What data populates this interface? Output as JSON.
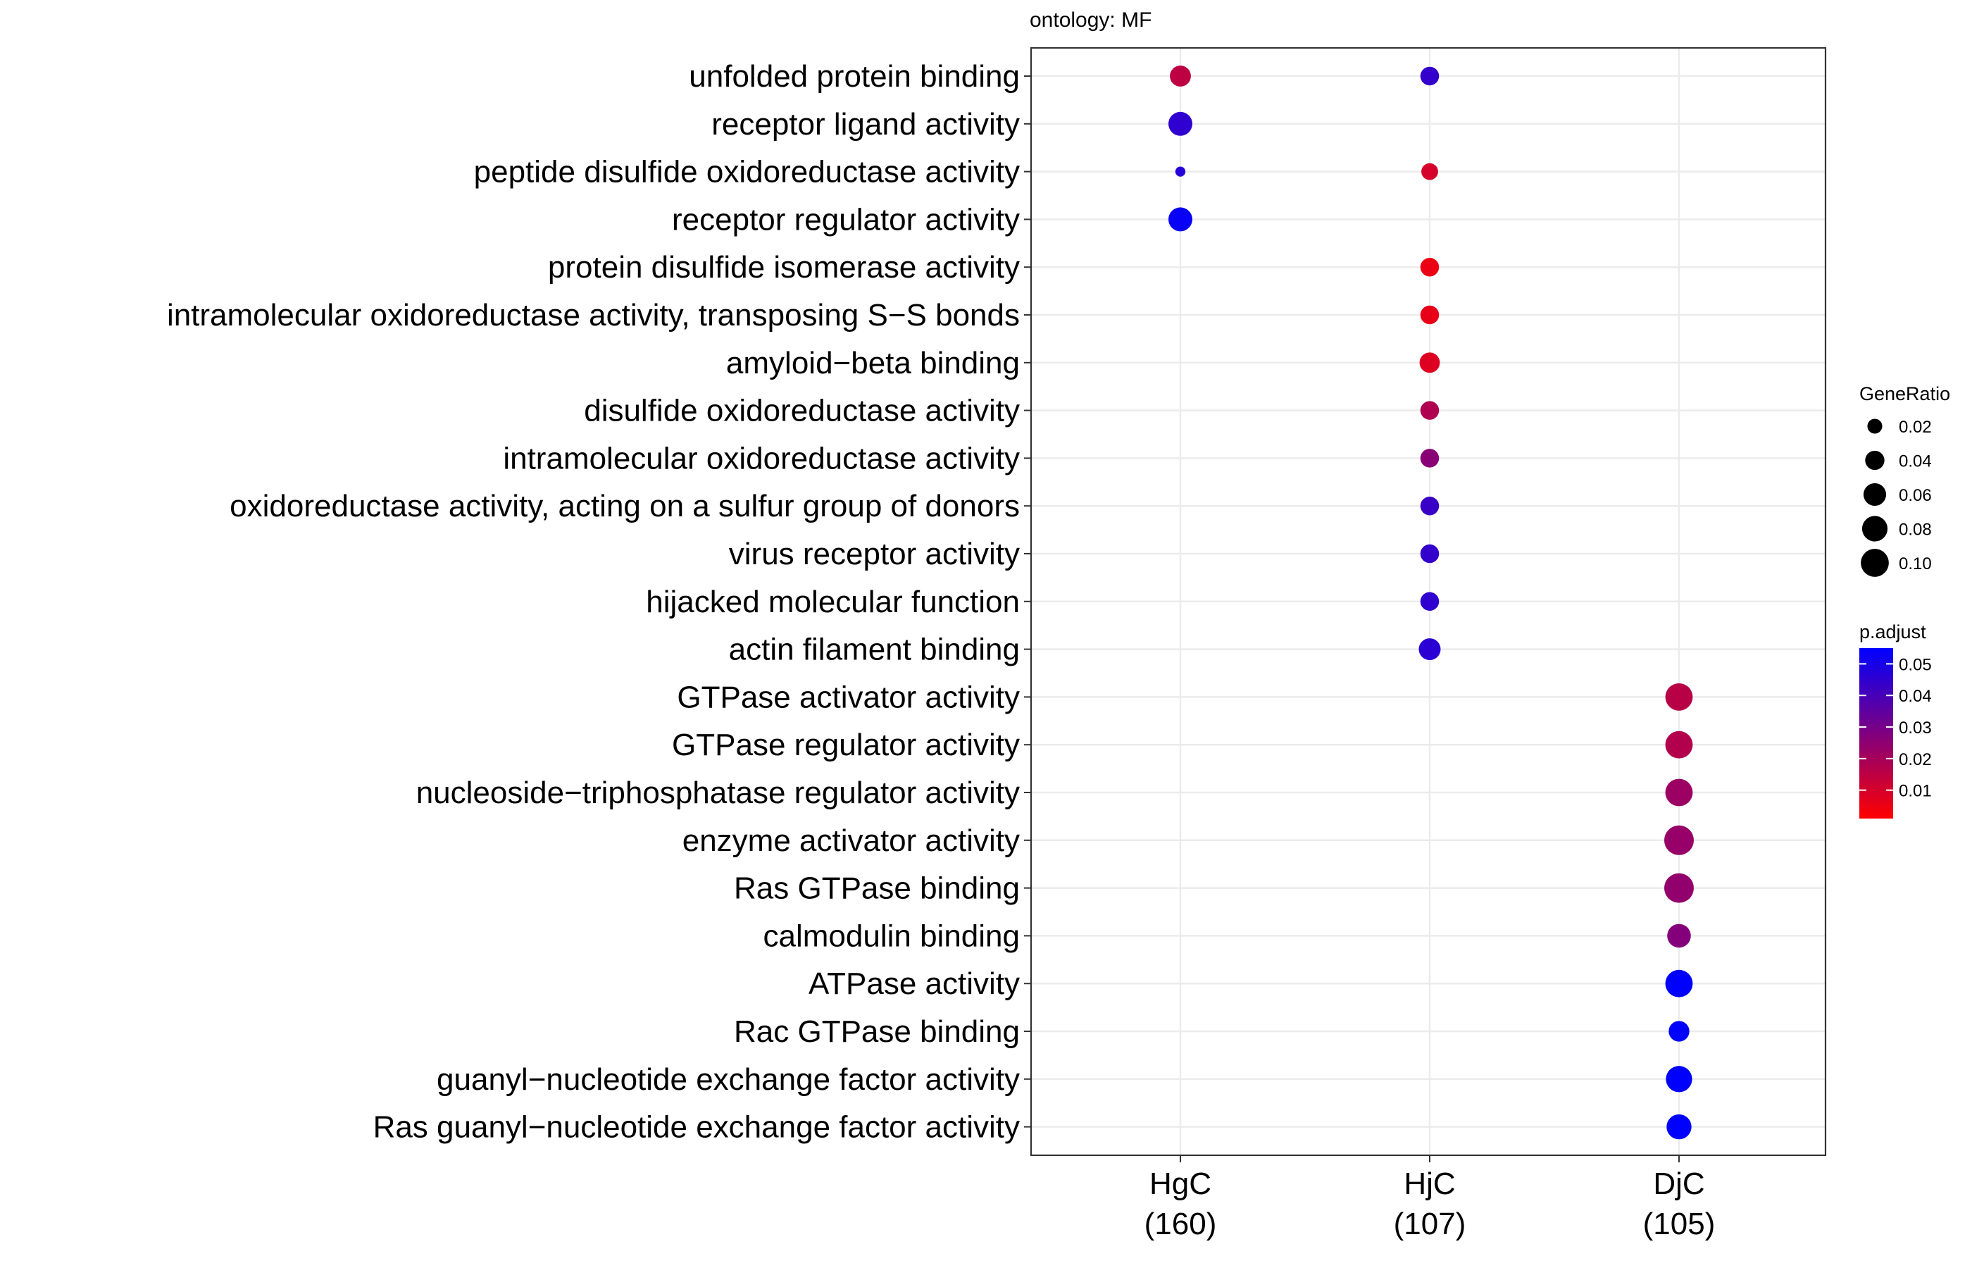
{
  "chart_data": {
    "type": "scatter",
    "subtitle": "ontology: MF",
    "xlabel": "",
    "ylabel": "",
    "grid": true,
    "legend_position": "right",
    "x_categories": [
      {
        "name": "HgC",
        "count": "(160)"
      },
      {
        "name": "HjC",
        "count": "(107)"
      },
      {
        "name": "DjC",
        "count": "(105)"
      }
    ],
    "y_categories": [
      "unfolded protein binding",
      "receptor ligand activity",
      "peptide disulfide oxidoreductase activity",
      "receptor regulator activity",
      "protein disulfide isomerase activity",
      "intramolecular oxidoreductase activity, transposing S−S bonds",
      "amyloid−beta binding",
      "disulfide oxidoreductase activity",
      "intramolecular oxidoreductase activity",
      "oxidoreductase activity, acting on a sulfur group of donors",
      "virus receptor activity",
      "hijacked molecular function",
      "actin filament binding",
      "GTPase activator activity",
      "GTPase regulator activity",
      "nucleoside−triphosphatase regulator activity",
      "enzyme activator activity",
      "Ras GTPase binding",
      "calmodulin binding",
      "ATPase activity",
      "Rac GTPase binding",
      "guanyl−nucleotide exchange factor activity",
      "Ras guanyl−nucleotide exchange factor activity"
    ],
    "points": [
      {
        "x": "HgC",
        "y": "unfolded protein binding",
        "gene_ratio": 0.05,
        "p_adjust": 0.015
      },
      {
        "x": "HjC",
        "y": "unfolded protein binding",
        "gene_ratio": 0.037,
        "p_adjust": 0.044
      },
      {
        "x": "HgC",
        "y": "receptor ligand activity",
        "gene_ratio": 0.069,
        "p_adjust": 0.045
      },
      {
        "x": "HgC",
        "y": "peptide disulfide oxidoreductase activity",
        "gene_ratio": 0.006,
        "p_adjust": 0.047
      },
      {
        "x": "HjC",
        "y": "peptide disulfide oxidoreductase activity",
        "gene_ratio": 0.028,
        "p_adjust": 0.01
      },
      {
        "x": "HgC",
        "y": "receptor regulator activity",
        "gene_ratio": 0.069,
        "p_adjust": 0.053
      },
      {
        "x": "HjC",
        "y": "protein disulfide isomerase activity",
        "gene_ratio": 0.037,
        "p_adjust": 0.005
      },
      {
        "x": "HjC",
        "y": "intramolecular oxidoreductase activity, transposing S−S bonds",
        "gene_ratio": 0.037,
        "p_adjust": 0.006
      },
      {
        "x": "HjC",
        "y": "amyloid−beta binding",
        "gene_ratio": 0.046,
        "p_adjust": 0.008
      },
      {
        "x": "HjC",
        "y": "disulfide oxidoreductase activity",
        "gene_ratio": 0.037,
        "p_adjust": 0.018
      },
      {
        "x": "HjC",
        "y": "intramolecular oxidoreductase activity",
        "gene_ratio": 0.037,
        "p_adjust": 0.026
      },
      {
        "x": "HjC",
        "y": "oxidoreductase activity, acting on a sulfur group of donors",
        "gene_ratio": 0.037,
        "p_adjust": 0.043
      },
      {
        "x": "HjC",
        "y": "virus receptor activity",
        "gene_ratio": 0.037,
        "p_adjust": 0.044
      },
      {
        "x": "HjC",
        "y": "hijacked molecular function",
        "gene_ratio": 0.037,
        "p_adjust": 0.045
      },
      {
        "x": "HjC",
        "y": "actin filament binding",
        "gene_ratio": 0.055,
        "p_adjust": 0.046
      },
      {
        "x": "DjC",
        "y": "GTPase activator activity",
        "gene_ratio": 0.095,
        "p_adjust": 0.016
      },
      {
        "x": "DjC",
        "y": "GTPase regulator activity",
        "gene_ratio": 0.095,
        "p_adjust": 0.017
      },
      {
        "x": "DjC",
        "y": "nucleoside−triphosphatase regulator activity",
        "gene_ratio": 0.095,
        "p_adjust": 0.022
      },
      {
        "x": "DjC",
        "y": "enzyme activator activity",
        "gene_ratio": 0.114,
        "p_adjust": 0.023
      },
      {
        "x": "DjC",
        "y": "Ras GTPase binding",
        "gene_ratio": 0.114,
        "p_adjust": 0.024
      },
      {
        "x": "DjC",
        "y": "calmodulin binding",
        "gene_ratio": 0.067,
        "p_adjust": 0.027
      },
      {
        "x": "DjC",
        "y": "ATPase activity",
        "gene_ratio": 0.095,
        "p_adjust": 0.055
      },
      {
        "x": "DjC",
        "y": "Rac GTPase binding",
        "gene_ratio": 0.048,
        "p_adjust": 0.055
      },
      {
        "x": "DjC",
        "y": "guanyl−nucleotide exchange factor activity",
        "gene_ratio": 0.086,
        "p_adjust": 0.055
      },
      {
        "x": "DjC",
        "y": "Ras guanyl−nucleotide exchange factor activity",
        "gene_ratio": 0.076,
        "p_adjust": 0.055
      }
    ],
    "size_legend": {
      "title": "GeneRatio",
      "breaks": [
        0.02,
        0.04,
        0.06,
        0.08,
        0.1
      ],
      "labels": [
        "0.02",
        "0.04",
        "0.06",
        "0.08",
        "0.10"
      ]
    },
    "color_legend": {
      "title": "p.adjust",
      "range": [
        0.001,
        0.055
      ],
      "low_color": "#ff0000",
      "high_color": "#0000ff",
      "breaks": [
        0.01,
        0.02,
        0.03,
        0.04,
        0.05
      ],
      "labels": [
        "0.01",
        "0.02",
        "0.03",
        "0.04",
        "0.05"
      ]
    },
    "colors": {
      "grid": "#ebebeb",
      "panel_border": "#333333",
      "tick": "#333333"
    }
  }
}
